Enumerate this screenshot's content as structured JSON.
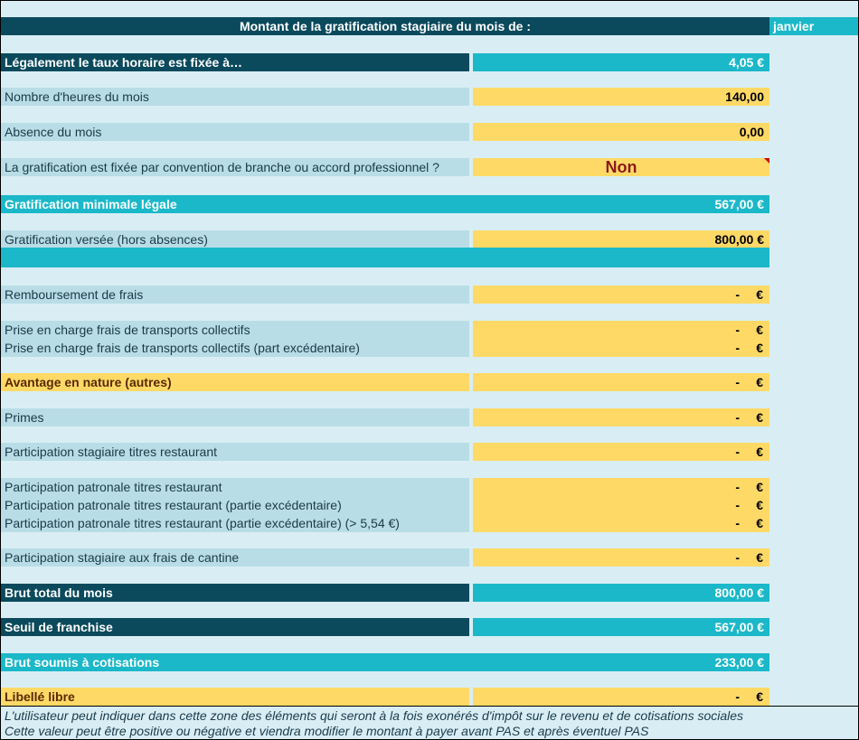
{
  "header": {
    "title": "Montant de la gratification stagiaire du mois de :",
    "month": "janvier"
  },
  "rows": {
    "taux": {
      "label": "Légalement le taux horaire est fixée à…",
      "value": "4,05 €"
    },
    "heures": {
      "label": "Nombre d'heures du mois",
      "value": "140,00"
    },
    "absence": {
      "label": "Absence du mois",
      "value": "0,00"
    },
    "convention": {
      "label": "La gratification est fixée par convention de branche ou accord professionnel ?",
      "value": "Non"
    },
    "grat_min": {
      "label": "Gratification minimale légale",
      "value": "567,00 €"
    },
    "grat_versee": {
      "label": "Gratification versée (hors absences)",
      "value": "800,00 €"
    },
    "frais": {
      "label": "Remboursement de frais",
      "dash": "-",
      "eur": "€"
    },
    "transp1": {
      "label": "Prise en charge frais de transports collectifs",
      "dash": "-",
      "eur": "€"
    },
    "transp2": {
      "label": "Prise en charge frais de transports collectifs (part excédentaire)",
      "dash": "-",
      "eur": "€"
    },
    "avantage": {
      "label": "Avantage en nature (autres)",
      "dash": "-",
      "eur": "€"
    },
    "primes": {
      "label": "Primes",
      "dash": "-",
      "eur": "€"
    },
    "tr_stag": {
      "label": "Participation stagiaire titres restaurant",
      "dash": "-",
      "eur": "€"
    },
    "tr_pat1": {
      "label": "Participation patronale titres restaurant",
      "dash": "-",
      "eur": "€"
    },
    "tr_pat2": {
      "label": "Participation patronale titres restaurant (partie excédentaire)",
      "dash": "-",
      "eur": "€"
    },
    "tr_pat3": {
      "label": "Participation patronale titres restaurant (partie excédentaire) (> 5,54 €)",
      "dash": "-",
      "eur": "€"
    },
    "cantine": {
      "label": "Participation stagiaire aux frais de cantine",
      "dash": "-",
      "eur": "€"
    },
    "brut_total": {
      "label": "Brut total du mois",
      "value": "800,00 €"
    },
    "seuil": {
      "label": "Seuil de franchise",
      "value": "567,00 €"
    },
    "brut_cotis": {
      "label": "Brut soumis à cotisations",
      "value": "233,00 €"
    },
    "libelle": {
      "label": "Libellé libre",
      "dash": "-",
      "eur": "€"
    }
  },
  "note": {
    "line1": "L'utilisateur peut indiquer dans cette zone des éléments qui seront à la fois exonérés d'impôt sur le revenu et de cotisations sociales",
    "line2": "Cette valeur peut être positive ou négative et viendra modifier le montant à payer avant PAS et après éventuel PAS"
  },
  "colors": {
    "dark": "#0b4a5c",
    "teal": "#1bb8c9",
    "yellow": "#ffd966",
    "light": "#b8dde6",
    "background": "#d9eef4"
  }
}
